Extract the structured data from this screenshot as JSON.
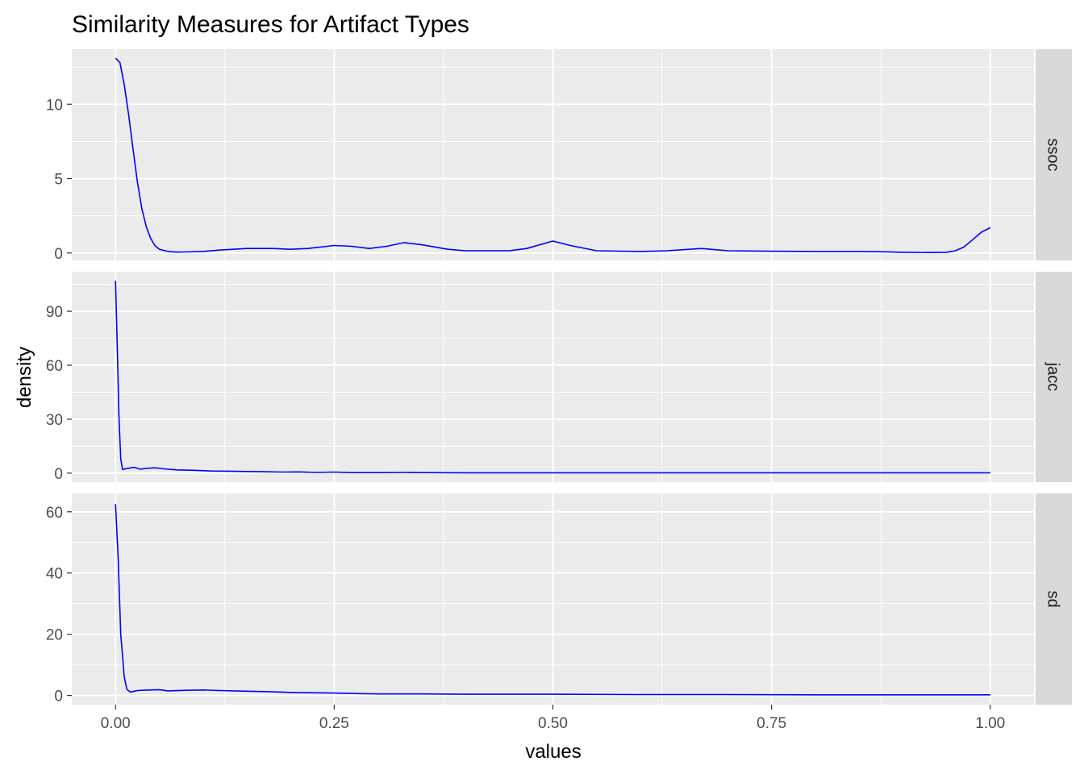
{
  "chart_data": {
    "type": "line",
    "title": "Similarity Measures for Artifact Types",
    "xlabel": "values",
    "ylabel": "density",
    "xlim": [
      -0.05,
      1.05
    ],
    "x_ticks": [
      0.0,
      0.25,
      0.5,
      0.75,
      1.0
    ],
    "x_tick_labels": [
      "0.00",
      "0.25",
      "0.50",
      "0.75",
      "1.00"
    ],
    "line_color": "#0000FF",
    "panel_background": "#EBEBEB",
    "strip_background": "#D9D9D9",
    "grid": true,
    "facets": [
      {
        "strip": "ssoc",
        "ylim": [
          -0.5,
          13.7
        ],
        "y_ticks": [
          0,
          5,
          10
        ],
        "y_tick_labels": [
          "0",
          "5",
          "10"
        ],
        "x": [
          0.0,
          0.005,
          0.01,
          0.015,
          0.02,
          0.025,
          0.03,
          0.035,
          0.04,
          0.045,
          0.05,
          0.06,
          0.07,
          0.08,
          0.1,
          0.12,
          0.15,
          0.18,
          0.2,
          0.22,
          0.25,
          0.27,
          0.29,
          0.31,
          0.33,
          0.35,
          0.38,
          0.4,
          0.45,
          0.47,
          0.5,
          0.52,
          0.55,
          0.6,
          0.63,
          0.67,
          0.7,
          0.75,
          0.8,
          0.85,
          0.88,
          0.9,
          0.93,
          0.95,
          0.96,
          0.97,
          0.98,
          0.99,
          1.0
        ],
        "y": [
          13.1,
          12.8,
          11.3,
          9.3,
          7.0,
          4.8,
          3.0,
          1.8,
          1.0,
          0.5,
          0.25,
          0.1,
          0.06,
          0.07,
          0.1,
          0.2,
          0.3,
          0.3,
          0.25,
          0.3,
          0.5,
          0.45,
          0.3,
          0.45,
          0.7,
          0.55,
          0.25,
          0.15,
          0.15,
          0.3,
          0.8,
          0.5,
          0.15,
          0.1,
          0.15,
          0.3,
          0.15,
          0.12,
          0.1,
          0.1,
          0.08,
          0.05,
          0.03,
          0.05,
          0.15,
          0.4,
          0.9,
          1.4,
          1.7
        ]
      },
      {
        "strip": "jacc",
        "ylim": [
          -5,
          112
        ],
        "y_ticks": [
          0,
          30,
          60,
          90
        ],
        "y_tick_labels": [
          "0",
          "30",
          "60",
          "90"
        ],
        "x": [
          0.0,
          0.002,
          0.004,
          0.006,
          0.008,
          0.012,
          0.018,
          0.022,
          0.028,
          0.035,
          0.045,
          0.055,
          0.07,
          0.09,
          0.11,
          0.13,
          0.15,
          0.17,
          0.19,
          0.21,
          0.23,
          0.25,
          0.27,
          0.3,
          0.33,
          0.4,
          0.5,
          0.6,
          0.7,
          0.8,
          0.9,
          1.0
        ],
        "y": [
          107,
          70,
          30,
          8,
          2,
          2.5,
          3,
          3.2,
          2.2,
          2.6,
          3,
          2.4,
          1.8,
          1.6,
          1.2,
          1.1,
          0.9,
          0.8,
          0.6,
          0.7,
          0.4,
          0.6,
          0.3,
          0.3,
          0.4,
          0.2,
          0.2,
          0.2,
          0.2,
          0.2,
          0.2,
          0.2
        ]
      },
      {
        "strip": "sd",
        "ylim": [
          -3,
          66
        ],
        "y_ticks": [
          0,
          20,
          40,
          60
        ],
        "y_tick_labels": [
          "0",
          "20",
          "40",
          "60"
        ],
        "x": [
          0.0,
          0.003,
          0.006,
          0.01,
          0.013,
          0.017,
          0.02,
          0.025,
          0.03,
          0.04,
          0.05,
          0.06,
          0.08,
          0.1,
          0.12,
          0.15,
          0.18,
          0.2,
          0.22,
          0.25,
          0.28,
          0.3,
          0.35,
          0.4,
          0.5,
          0.6,
          0.7,
          0.8,
          0.9,
          1.0
        ],
        "y": [
          62.5,
          45,
          20,
          6,
          2,
          1.1,
          1.3,
          1.6,
          1.7,
          1.8,
          1.9,
          1.5,
          1.7,
          1.8,
          1.6,
          1.4,
          1.2,
          1.0,
          0.9,
          0.8,
          0.6,
          0.5,
          0.5,
          0.4,
          0.4,
          0.3,
          0.3,
          0.2,
          0.2,
          0.2
        ]
      }
    ]
  }
}
